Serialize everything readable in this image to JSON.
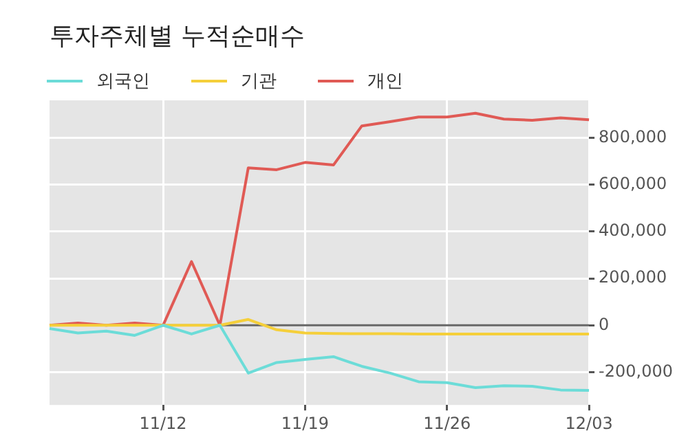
{
  "chart_data": {
    "type": "line",
    "title": "투자주체별 누적순매수",
    "categories": [
      null,
      null,
      null,
      null,
      "11/12",
      null,
      null,
      null,
      null,
      "11/19",
      null,
      null,
      null,
      null,
      "11/26",
      null,
      null,
      null,
      null,
      "12/03"
    ],
    "series": [
      {
        "name": "외국인",
        "color": "#6cdcd8",
        "values": [
          -14000,
          -33000,
          -25000,
          -43000,
          0,
          -37000,
          0,
          -204000,
          -159000,
          -146000,
          -134000,
          -175000,
          -204000,
          -241000,
          -245000,
          -266000,
          -258000,
          -260000,
          -276000,
          -278000
        ]
      },
      {
        "name": "기관",
        "color": "#f5cf3a",
        "values": [
          0,
          0,
          0,
          0,
          0,
          0,
          0,
          25000,
          -19000,
          -33000,
          -35000,
          -36000,
          -36000,
          -37000,
          -37000,
          -37000,
          -37000,
          -37000,
          -37000,
          -37000
        ]
      },
      {
        "name": "개인",
        "color": "#e05a55",
        "values": [
          0,
          10000,
          0,
          10000,
          0,
          272000,
          0,
          672000,
          664000,
          695000,
          684000,
          851000,
          869000,
          889000,
          889000,
          905000,
          880000,
          875000,
          885000,
          877000
        ]
      }
    ],
    "ylim": [
      -340000,
      960000
    ],
    "yticks": [
      {
        "value": -200000,
        "label": "-200,000"
      },
      0,
      {
        "value": 200000,
        "label": "200,000"
      },
      {
        "value": 400000,
        "label": "400,000"
      },
      {
        "value": 600000,
        "label": "600,000"
      },
      {
        "value": 800000,
        "label": "800,000"
      }
    ],
    "ref_lines": [
      {
        "axis": "y",
        "value": 0,
        "color": "#666666"
      }
    ],
    "grid": true,
    "legend": "top left"
  }
}
